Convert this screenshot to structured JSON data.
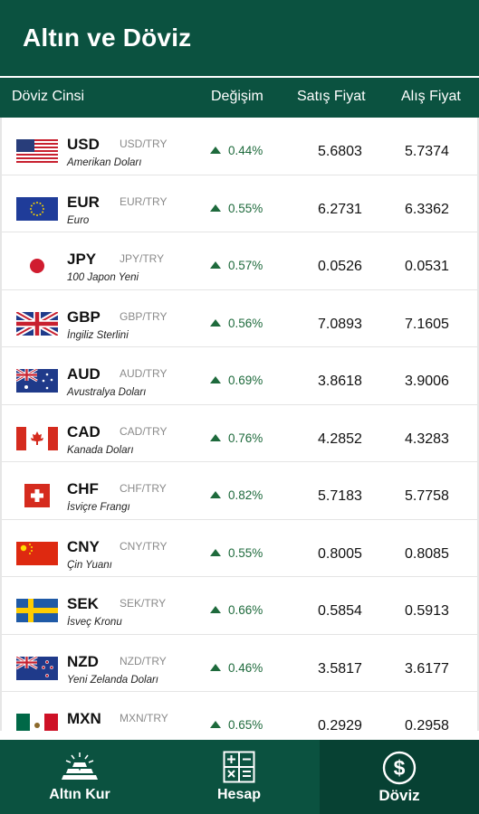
{
  "app": {
    "title": "Altın ve Döviz"
  },
  "columns": {
    "name": "Döviz Cinsi",
    "change": "Değişim",
    "sell": "Satış Fiyat",
    "buy": "Alış Fiyat"
  },
  "currencies": [
    {
      "code": "USD",
      "pair": "USD/TRY",
      "name": "Amerikan Doları",
      "change": "0.44%",
      "sell": "5.6803",
      "buy": "5.7374",
      "flag": "us-flag-icon"
    },
    {
      "code": "EUR",
      "pair": "EUR/TRY",
      "name": "Euro",
      "change": "0.55%",
      "sell": "6.2731",
      "buy": "6.3362",
      "flag": "eu-flag-icon"
    },
    {
      "code": "JPY",
      "pair": "JPY/TRY",
      "name": "100 Japon Yeni",
      "change": "0.57%",
      "sell": "0.0526",
      "buy": "0.0531",
      "flag": "jp-flag-icon"
    },
    {
      "code": "GBP",
      "pair": "GBP/TRY",
      "name": "İngiliz Sterlini",
      "change": "0.56%",
      "sell": "7.0893",
      "buy": "7.1605",
      "flag": "gb-flag-icon"
    },
    {
      "code": "AUD",
      "pair": "AUD/TRY",
      "name": "Avustralya Doları",
      "change": "0.69%",
      "sell": "3.8618",
      "buy": "3.9006",
      "flag": "au-flag-icon"
    },
    {
      "code": "CAD",
      "pair": "CAD/TRY",
      "name": "Kanada Doları",
      "change": "0.76%",
      "sell": "4.2852",
      "buy": "4.3283",
      "flag": "ca-flag-icon"
    },
    {
      "code": "CHF",
      "pair": "CHF/TRY",
      "name": "İsviçre Frangı",
      "change": "0.82%",
      "sell": "5.7183",
      "buy": "5.7758",
      "flag": "ch-flag-icon"
    },
    {
      "code": "CNY",
      "pair": "CNY/TRY",
      "name": "Çin Yuanı",
      "change": "0.55%",
      "sell": "0.8005",
      "buy": "0.8085",
      "flag": "cn-flag-icon"
    },
    {
      "code": "SEK",
      "pair": "SEK/TRY",
      "name": "İsveç Kronu",
      "change": "0.66%",
      "sell": "0.5854",
      "buy": "0.5913",
      "flag": "se-flag-icon"
    },
    {
      "code": "NZD",
      "pair": "NZD/TRY",
      "name": "Yeni Zelanda Doları",
      "change": "0.46%",
      "sell": "3.5817",
      "buy": "3.6177",
      "flag": "nz-flag-icon"
    },
    {
      "code": "MXN",
      "pair": "MXN/TRY",
      "name": "",
      "change": "0.65%",
      "sell": "0.2929",
      "buy": "0.2958",
      "flag": "mx-flag-icon"
    }
  ],
  "nav": {
    "gold": {
      "label": "Altın Kur",
      "icon": "gold-bars-icon"
    },
    "calc": {
      "label": "Hesap",
      "icon": "calculator-icon"
    },
    "fx": {
      "label": "Döviz",
      "icon": "dollar-coin-icon"
    }
  },
  "colors": {
    "primary": "#0b5240",
    "active_tab": "#074133",
    "up": "#1e6a3c"
  }
}
